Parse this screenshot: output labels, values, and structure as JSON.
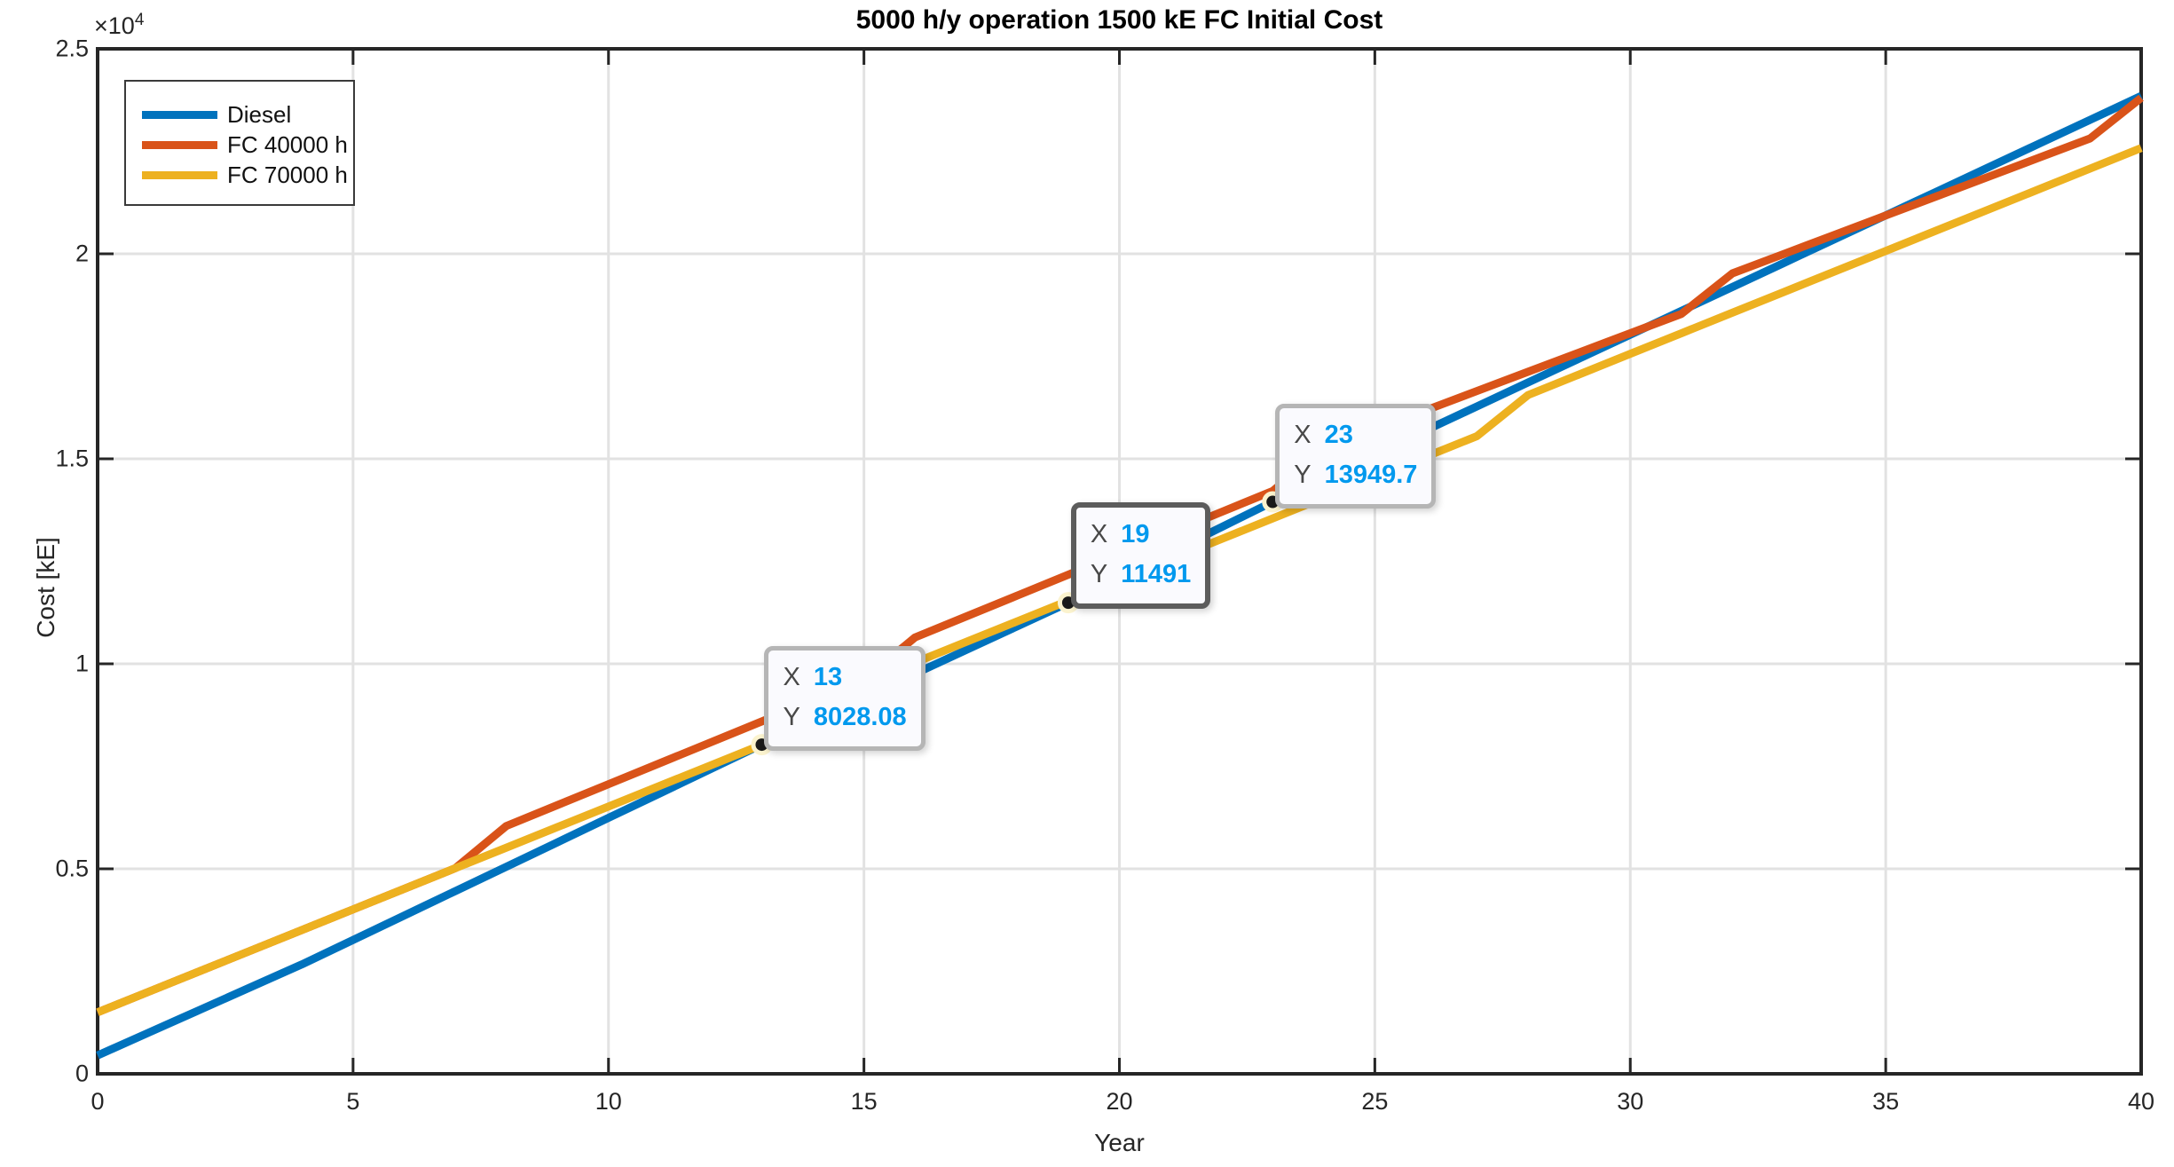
{
  "figure": {
    "title": "5000 h/y operation 1500 kE FC Initial Cost",
    "xlabel": "Year",
    "ylabel": "Cost [kE]",
    "y_axis_offset_base": "×10",
    "y_axis_offset_exp": "4"
  },
  "chart_data": {
    "type": "line",
    "title": "5000 h/y operation 1500 kE FC Initial Cost",
    "xlabel": "Year",
    "ylabel": "Cost [kE]",
    "xlim": [
      0,
      40
    ],
    "ylim": [
      0,
      25000
    ],
    "grid": true,
    "legend_position": "top-left",
    "x_ticks": [
      0,
      5,
      10,
      15,
      20,
      25,
      30,
      35,
      40
    ],
    "x_tick_labels": [
      "0",
      "5",
      "10",
      "15",
      "20",
      "25",
      "30",
      "35",
      "40"
    ],
    "y_ticks": [
      0,
      5000,
      10000,
      15000,
      20000,
      25000
    ],
    "y_tick_labels": [
      "0",
      "0.5",
      "1",
      "1.5",
      "2",
      "2.5"
    ],
    "x": [
      0,
      1,
      2,
      3,
      4,
      5,
      6,
      7,
      8,
      9,
      10,
      11,
      12,
      13,
      14,
      15,
      16,
      17,
      18,
      19,
      20,
      21,
      22,
      23,
      24,
      25,
      26,
      27,
      28,
      29,
      30,
      31,
      32,
      33,
      34,
      35,
      36,
      37,
      38,
      39,
      40
    ],
    "series": [
      {
        "name": "Diesel",
        "color": "#0072BD",
        "values": [
          450,
          1005,
          1560,
          2115,
          2670,
          3265,
          3860,
          4456,
          5051,
          5646,
          6242,
          6837,
          7433,
          8028,
          8605,
          9182,
          9760,
          10337,
          10914,
          11491,
          12106,
          12720,
          13335,
          13950,
          14532,
          15115,
          15697,
          16279,
          16862,
          17444,
          18026,
          18609,
          19191,
          19773,
          20356,
          20938,
          21520,
          22103,
          22685,
          23267,
          23850
        ]
      },
      {
        "name": "FC 40000 h",
        "color": "#D95319",
        "values": [
          1500,
          2002,
          2504,
          3006,
          3508,
          4010,
          4512,
          5014,
          6044,
          6554,
          7064,
          7574,
          8084,
          8594,
          9104,
          9614,
          10644,
          11154,
          11664,
          12174,
          12684,
          13194,
          13704,
          14214,
          15244,
          15714,
          16184,
          16654,
          17124,
          17594,
          18064,
          18534,
          19524,
          19994,
          20464,
          20934,
          21404,
          21874,
          22344,
          22814,
          23804
        ]
      },
      {
        "name": "FC 70000 h",
        "color": "#EDB120",
        "values": [
          1500,
          2002,
          2504,
          3006,
          3508,
          4010,
          4512,
          5014,
          5516,
          6018,
          6520,
          7022,
          7524,
          8026,
          9028,
          9530,
          10032,
          10534,
          11036,
          11538,
          12040,
          12542,
          13044,
          13546,
          14048,
          14550,
          15052,
          15554,
          16556,
          17058,
          17560,
          18062,
          18564,
          19066,
          19568,
          20070,
          20572,
          21074,
          21576,
          22078,
          22580
        ]
      }
    ],
    "datatip_keys": {
      "x": "X",
      "y": "Y"
    },
    "datatips": [
      {
        "x": 13,
        "y": 8028.08,
        "x_label": "13",
        "y_label": "8028.08",
        "selected": false
      },
      {
        "x": 19,
        "y": 11491,
        "x_label": "19",
        "y_label": "11491",
        "selected": true
      },
      {
        "x": 23,
        "y": 13949.7,
        "x_label": "23",
        "y_label": "13949.7",
        "selected": false
      }
    ],
    "colors": {
      "grid": "#e2e2e2",
      "axis": "#262626",
      "datatip_value": "#0099ee",
      "datatip_marker": "#1a1a1a",
      "datatip_marker_halo": "#fbf3ce"
    }
  }
}
